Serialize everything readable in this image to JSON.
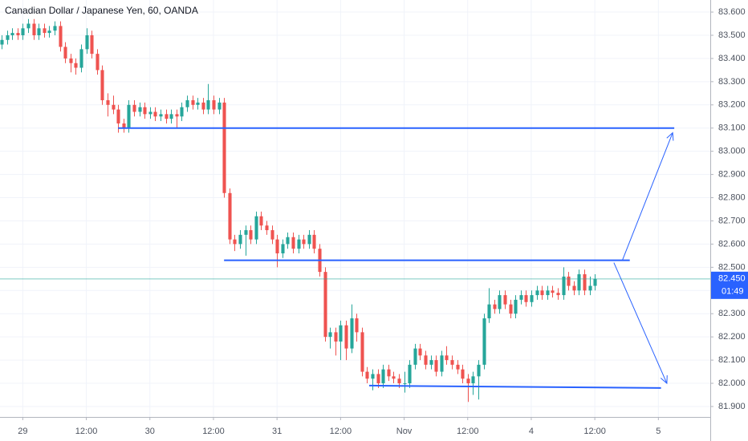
{
  "chart_data": {
    "type": "candlestick",
    "title": "Canadian Dollar / Japanese Yen, 60, OANDA",
    "up_color": "#26a69a",
    "down_color": "#ef5350",
    "grid": true,
    "xlim": [
      -0.3,
      133.8
    ],
    "ylim": [
      81.855,
      83.652
    ],
    "xticks": [
      {
        "value": 4,
        "label": "29"
      },
      {
        "value": 16,
        "label": "12:00"
      },
      {
        "value": 28,
        "label": "30"
      },
      {
        "value": 40,
        "label": "12:00"
      },
      {
        "value": 52,
        "label": "31"
      },
      {
        "value": 64,
        "label": "12:00"
      },
      {
        "value": 76,
        "label": "Nov"
      },
      {
        "value": 88,
        "label": "12:00"
      },
      {
        "value": 100,
        "label": "4"
      },
      {
        "value": 112,
        "label": "12:00"
      },
      {
        "value": 124,
        "label": "5"
      }
    ],
    "yticks": [
      {
        "value": 81.9,
        "label": "81.900"
      },
      {
        "value": 82.0,
        "label": "82.000"
      },
      {
        "value": 82.1,
        "label": "82.100"
      },
      {
        "value": 82.2,
        "label": "82.200"
      },
      {
        "value": 82.3,
        "label": "82.300"
      },
      {
        "value": 82.4,
        "label": "82.400"
      },
      {
        "value": 82.5,
        "label": "82.500"
      },
      {
        "value": 82.6,
        "label": "82.600"
      },
      {
        "value": 82.7,
        "label": "82.700"
      },
      {
        "value": 82.8,
        "label": "82.800"
      },
      {
        "value": 82.9,
        "label": "82.900"
      },
      {
        "value": 83.0,
        "label": "83.000"
      },
      {
        "value": 83.1,
        "label": "83.100"
      },
      {
        "value": 83.2,
        "label": "83.200"
      },
      {
        "value": 83.3,
        "label": "83.300"
      },
      {
        "value": 83.4,
        "label": "83.400"
      },
      {
        "value": 83.5,
        "label": "83.500"
      },
      {
        "value": 83.6,
        "label": "83.600"
      }
    ],
    "last_price": {
      "value": 82.45,
      "label": "82.450",
      "color": "#2962ff"
    },
    "countdown": "01:49",
    "drawing_color": "#2962ff",
    "drawings": [
      {
        "kind": "line",
        "x": [
          22,
          127
        ],
        "y": [
          83.1,
          83.1
        ]
      },
      {
        "kind": "line",
        "x": [
          42,
          118.6
        ],
        "y": [
          82.53,
          82.53
        ]
      },
      {
        "kind": "line",
        "x": [
          69.4,
          124.5
        ],
        "y": [
          81.99,
          81.98
        ]
      },
      {
        "kind": "arrow",
        "x": [
          117.2,
          126.7
        ],
        "y": [
          82.53,
          83.08
        ]
      },
      {
        "kind": "arrow",
        "x": [
          115.6,
          125.6
        ],
        "y": [
          82.52,
          82.0
        ]
      }
    ],
    "ohlc": [
      [
        83.46,
        83.5,
        83.44,
        83.48
      ],
      [
        83.48,
        83.52,
        83.46,
        83.5
      ],
      [
        83.5,
        83.53,
        83.48,
        83.51
      ],
      [
        83.51,
        83.53,
        83.48,
        83.5
      ],
      [
        83.5,
        83.55,
        83.48,
        83.53
      ],
      [
        83.53,
        83.57,
        83.51,
        83.55
      ],
      [
        83.55,
        83.57,
        83.48,
        83.5
      ],
      [
        83.5,
        83.55,
        83.48,
        83.53
      ],
      [
        83.53,
        83.55,
        83.49,
        83.51
      ],
      [
        83.51,
        83.54,
        83.49,
        83.52
      ],
      [
        83.52,
        83.56,
        83.5,
        83.54
      ],
      [
        83.54,
        83.56,
        83.43,
        83.45
      ],
      [
        83.45,
        83.47,
        83.38,
        83.4
      ],
      [
        83.4,
        83.42,
        83.34,
        83.38
      ],
      [
        83.38,
        83.4,
        83.33,
        83.36
      ],
      [
        83.36,
        83.46,
        83.34,
        83.44
      ],
      [
        83.44,
        83.53,
        83.42,
        83.5
      ],
      [
        83.5,
        83.52,
        83.4,
        83.42
      ],
      [
        83.42,
        83.44,
        83.33,
        83.35
      ],
      [
        83.35,
        83.37,
        83.2,
        83.22
      ],
      [
        83.22,
        83.25,
        83.15,
        83.2
      ],
      [
        83.2,
        83.24,
        83.16,
        83.18
      ],
      [
        83.18,
        83.2,
        83.08,
        83.12
      ],
      [
        83.12,
        83.14,
        83.08,
        83.1
      ],
      [
        83.1,
        83.22,
        83.08,
        83.2
      ],
      [
        83.2,
        83.22,
        83.15,
        83.17
      ],
      [
        83.17,
        83.21,
        83.15,
        83.19
      ],
      [
        83.19,
        83.21,
        83.14,
        83.16
      ],
      [
        83.16,
        83.19,
        83.14,
        83.17
      ],
      [
        83.17,
        83.19,
        83.13,
        83.15
      ],
      [
        83.15,
        83.18,
        83.13,
        83.16
      ],
      [
        83.16,
        83.18,
        83.12,
        83.14
      ],
      [
        83.14,
        83.18,
        83.12,
        83.16
      ],
      [
        83.16,
        83.18,
        83.1,
        83.15
      ],
      [
        83.15,
        83.21,
        83.13,
        83.19
      ],
      [
        83.19,
        83.24,
        83.17,
        83.22
      ],
      [
        83.22,
        83.24,
        83.18,
        83.2
      ],
      [
        83.2,
        83.23,
        83.18,
        83.21
      ],
      [
        83.21,
        83.23,
        83.16,
        83.18
      ],
      [
        83.18,
        83.29,
        83.16,
        83.22
      ],
      [
        83.22,
        83.24,
        83.16,
        83.18
      ],
      [
        83.18,
        83.23,
        83.16,
        83.21
      ],
      [
        83.21,
        83.23,
        82.8,
        82.82
      ],
      [
        82.82,
        82.84,
        82.6,
        82.62
      ],
      [
        82.62,
        82.64,
        82.57,
        82.6
      ],
      [
        82.6,
        82.66,
        82.58,
        82.64
      ],
      [
        82.64,
        82.68,
        82.55,
        82.66
      ],
      [
        82.66,
        82.68,
        82.6,
        82.62
      ],
      [
        82.62,
        82.74,
        82.6,
        82.72
      ],
      [
        82.72,
        82.74,
        82.66,
        82.68
      ],
      [
        82.68,
        82.7,
        82.64,
        82.66
      ],
      [
        82.66,
        82.68,
        82.6,
        82.62
      ],
      [
        82.62,
        82.64,
        82.5,
        82.56
      ],
      [
        82.56,
        82.62,
        82.54,
        82.6
      ],
      [
        82.6,
        82.65,
        82.58,
        82.63
      ],
      [
        82.63,
        82.65,
        82.56,
        82.58
      ],
      [
        82.58,
        82.64,
        82.56,
        82.62
      ],
      [
        82.62,
        82.64,
        82.58,
        82.6
      ],
      [
        82.6,
        82.66,
        82.58,
        82.64
      ],
      [
        82.64,
        82.66,
        82.56,
        82.58
      ],
      [
        82.58,
        82.6,
        82.46,
        82.48
      ],
      [
        82.48,
        82.5,
        82.18,
        82.2
      ],
      [
        82.2,
        82.24,
        82.15,
        82.22
      ],
      [
        82.22,
        82.24,
        82.12,
        82.18
      ],
      [
        82.18,
        82.27,
        82.1,
        82.25
      ],
      [
        82.25,
        82.27,
        82.1,
        82.15
      ],
      [
        82.15,
        82.34,
        82.13,
        82.28
      ],
      [
        82.28,
        82.3,
        82.18,
        82.22
      ],
      [
        82.22,
        82.24,
        82.03,
        82.05
      ],
      [
        82.05,
        82.07,
        82.0,
        82.02
      ],
      [
        82.02,
        82.06,
        81.97,
        82.04
      ],
      [
        82.04,
        82.06,
        81.98,
        82.0
      ],
      [
        82.0,
        82.08,
        81.98,
        82.06
      ],
      [
        82.06,
        82.08,
        82.01,
        82.03
      ],
      [
        82.03,
        82.05,
        82.0,
        82.02
      ],
      [
        82.02,
        82.04,
        81.98,
        82.0
      ],
      [
        82.0,
        82.05,
        81.96,
        82.0
      ],
      [
        82.0,
        82.1,
        81.98,
        82.08
      ],
      [
        82.08,
        82.17,
        82.06,
        82.15
      ],
      [
        82.15,
        82.17,
        82.1,
        82.12
      ],
      [
        82.12,
        82.14,
        82.06,
        82.08
      ],
      [
        82.08,
        82.12,
        82.06,
        82.1
      ],
      [
        82.1,
        82.12,
        82.03,
        82.05
      ],
      [
        82.05,
        82.14,
        82.03,
        82.12
      ],
      [
        82.12,
        82.16,
        82.08,
        82.1
      ],
      [
        82.1,
        82.12,
        82.06,
        82.08
      ],
      [
        82.08,
        82.1,
        82.04,
        82.06
      ],
      [
        82.06,
        82.08,
        82.0,
        82.02
      ],
      [
        82.02,
        82.04,
        81.92,
        82.0
      ],
      [
        82.0,
        82.05,
        81.95,
        82.03
      ],
      [
        82.03,
        82.1,
        81.93,
        82.08
      ],
      [
        82.08,
        82.3,
        82.06,
        82.28
      ],
      [
        82.28,
        82.41,
        82.26,
        82.34
      ],
      [
        82.34,
        82.36,
        82.3,
        82.32
      ],
      [
        82.32,
        82.4,
        82.3,
        82.38
      ],
      [
        82.38,
        82.4,
        82.32,
        82.34
      ],
      [
        82.34,
        82.36,
        82.28,
        82.3
      ],
      [
        82.3,
        82.38,
        82.28,
        82.36
      ],
      [
        82.36,
        82.4,
        82.34,
        82.38
      ],
      [
        82.38,
        82.4,
        82.33,
        82.35
      ],
      [
        82.35,
        82.4,
        82.33,
        82.38
      ],
      [
        82.38,
        82.42,
        82.36,
        82.4
      ],
      [
        82.4,
        82.42,
        82.36,
        82.38
      ],
      [
        82.38,
        82.42,
        82.36,
        82.4
      ],
      [
        82.4,
        82.42,
        82.37,
        82.39
      ],
      [
        82.39,
        82.41,
        82.36,
        82.38
      ],
      [
        82.38,
        82.5,
        82.36,
        82.46
      ],
      [
        82.46,
        82.48,
        82.4,
        82.42
      ],
      [
        82.42,
        82.44,
        82.38,
        82.4
      ],
      [
        82.4,
        82.49,
        82.38,
        82.47
      ],
      [
        82.47,
        82.49,
        82.38,
        82.4
      ],
      [
        82.4,
        82.46,
        82.38,
        82.42
      ],
      [
        82.42,
        82.47,
        82.4,
        82.45
      ]
    ]
  }
}
